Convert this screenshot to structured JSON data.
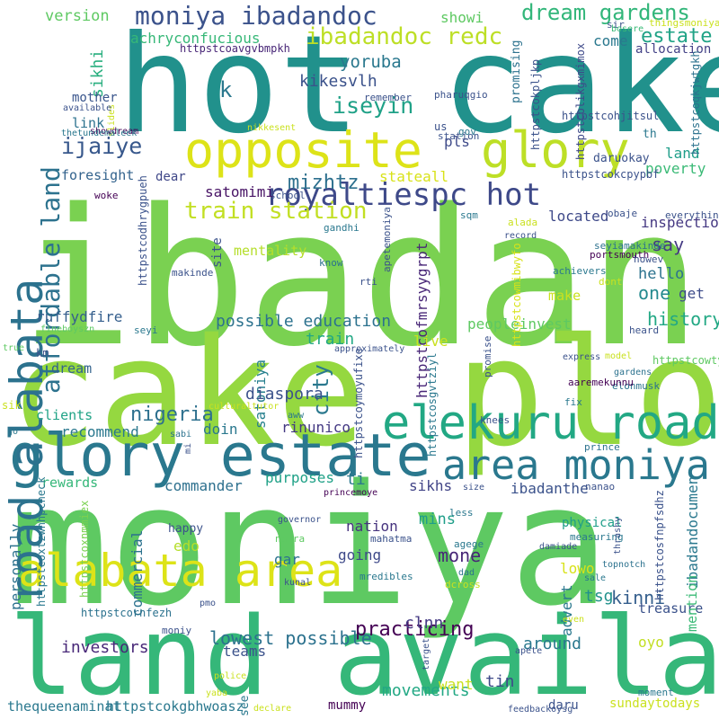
{
  "words": [
    {
      "text": "hot cake",
      "color": "#21918c"
    },
    {
      "text": "ibadan",
      "color": "#7ad151"
    },
    {
      "text": "cake plots",
      "color": "#95d840"
    },
    {
      "text": "moniya",
      "color": "#5ec962"
    },
    {
      "text": "land available",
      "color": "#35b779"
    },
    {
      "text": "glory estate",
      "color": "#2a788e"
    },
    {
      "text": "opposite",
      "color": "#dde318"
    },
    {
      "text": "glory",
      "color": "#bddf26"
    },
    {
      "text": "road alabata",
      "color": "#2c728e"
    },
    {
      "text": "elekuru road",
      "color": "#22a884"
    },
    {
      "text": "area moniya",
      "color": "#2a788e"
    },
    {
      "text": "alabata area",
      "color": "#dde318"
    },
    {
      "text": "royaltiespc hot",
      "color": "#3e4989"
    },
    {
      "text": "affordable land",
      "color": "#2c728e"
    },
    {
      "text": "moniya ibadandoc",
      "color": "#3b528b"
    },
    {
      "text": "dream gardens",
      "color": "#32b67a"
    },
    {
      "text": "ibadandoc redc",
      "color": "#bddf26"
    },
    {
      "text": "train station",
      "color": "#c2df23"
    },
    {
      "text": "estate",
      "color": "#20a386"
    },
    {
      "text": "iseyin",
      "color": "#1fa187"
    },
    {
      "text": "ijaiye",
      "color": "#38588c"
    },
    {
      "text": "mizhtz",
      "color": "#2d708e"
    },
    {
      "text": "yoruba",
      "color": "#2a788e"
    },
    {
      "text": "sikhi",
      "color": "#29af7f"
    },
    {
      "text": "version",
      "color": "#5ec962"
    },
    {
      "text": "showi",
      "color": "#5ec962"
    },
    {
      "text": "achryconfucious",
      "color": "#37b878"
    },
    {
      "text": "come",
      "color": "#2a788e"
    },
    {
      "text": "allocation",
      "color": "#424186"
    },
    {
      "text": "k",
      "color": "#2a788e"
    },
    {
      "text": "kikesvlh",
      "color": "#3b528b"
    },
    {
      "text": "mother",
      "color": "#39558c"
    },
    {
      "text": "link",
      "color": "#2c728e"
    },
    {
      "text": "foresight",
      "color": "#33638d"
    },
    {
      "text": "dear",
      "color": "#3f4788"
    },
    {
      "text": "satomimi",
      "color": "#471365"
    },
    {
      "text": "stateall",
      "color": "#d8e219"
    },
    {
      "text": "pls",
      "color": "#3e4a89"
    },
    {
      "text": "land",
      "color": "#1f9e89"
    },
    {
      "text": "poverty",
      "color": "#3aba76"
    },
    {
      "text": "inspection",
      "color": "#453882"
    },
    {
      "text": "say",
      "color": "#443983"
    },
    {
      "text": "hello",
      "color": "#2c728e"
    },
    {
      "text": "one",
      "color": "#23898e"
    },
    {
      "text": "get",
      "color": "#3e4c8a"
    },
    {
      "text": "history",
      "color": "#22a884"
    },
    {
      "text": "ruffydfire",
      "color": "#355f8d"
    },
    {
      "text": "possible education",
      "color": "#2c728e"
    },
    {
      "text": "peopleinvest",
      "color": "#5ec962"
    },
    {
      "text": "city",
      "color": "#2a788e"
    },
    {
      "text": "satoniya",
      "color": "#27808e"
    },
    {
      "text": "train",
      "color": "#22a884"
    },
    {
      "text": "dream",
      "color": "#33638d"
    },
    {
      "text": "nigeria",
      "color": "#2d708e"
    },
    {
      "text": "clients",
      "color": "#20a386"
    },
    {
      "text": "recommend",
      "color": "#2a788e"
    },
    {
      "text": "doin",
      "color": "#2a788e"
    },
    {
      "text": "rinunico",
      "color": "#443983"
    },
    {
      "text": "purposes",
      "color": "#1fa187"
    },
    {
      "text": "sikhs",
      "color": "#414487"
    },
    {
      "text": "ibadanthe",
      "color": "#3b528b"
    },
    {
      "text": "ibadandocumen",
      "color": "#2a788e"
    },
    {
      "text": "commander",
      "color": "#2d708e"
    },
    {
      "text": "rewards",
      "color": "#35b779"
    },
    {
      "text": "happy",
      "color": "#3b528b"
    },
    {
      "text": "edo",
      "color": "#b5de2b"
    },
    {
      "text": "nation",
      "color": "#46337e"
    },
    {
      "text": "mins",
      "color": "#1f9e89"
    },
    {
      "text": "mone",
      "color": "#482677"
    },
    {
      "text": "going",
      "color": "#3e4989"
    },
    {
      "text": "gar",
      "color": "#2c728e"
    },
    {
      "text": "physical",
      "color": "#1f9e89"
    },
    {
      "text": "lowo",
      "color": "#d8e219"
    },
    {
      "text": "practicing",
      "color": "#440154"
    },
    {
      "text": "advert",
      "color": "#2a788e"
    },
    {
      "text": "tsg",
      "color": "#21918c"
    },
    {
      "text": "kinni",
      "color": "#355f8d"
    },
    {
      "text": "lowest possible",
      "color": "#2c728e"
    },
    {
      "text": "clnn",
      "color": "#443983"
    },
    {
      "text": "investors",
      "color": "#482878"
    },
    {
      "text": "teams",
      "color": "#3b528b"
    },
    {
      "text": "around",
      "color": "#2a788e"
    },
    {
      "text": "oyo",
      "color": "#c2df23"
    },
    {
      "text": "treasure",
      "color": "#3b528b"
    },
    {
      "text": "movements",
      "color": "#22a884"
    },
    {
      "text": "tin",
      "color": "#3e4989"
    },
    {
      "text": "want",
      "color": "#cae11f"
    },
    {
      "text": "daru",
      "color": "#3b528b"
    },
    {
      "text": "sundaytodays",
      "color": "#cae11f"
    },
    {
      "text": "thequeenaminat",
      "color": "#2a788e"
    },
    {
      "text": "httpstcokgbhwoasz",
      "color": "#2a788e"
    },
    {
      "text": "mummy",
      "color": "#440154"
    },
    {
      "text": "commercial",
      "color": "#2c728e"
    },
    {
      "text": "personally",
      "color": "#2c728e"
    },
    {
      "text": "mention",
      "color": "#3aba76"
    },
    {
      "text": "httpstcofmrsyygrpt",
      "color": "#482677"
    },
    {
      "text": "located",
      "color": "#3e4989"
    },
    {
      "text": "make",
      "color": "#cae11f"
    },
    {
      "text": "live",
      "color": "#cae11f"
    },
    {
      "text": "site",
      "color": "#3b528b"
    },
    {
      "text": "mentality",
      "color": "#b5de2b"
    },
    {
      "text": "diaspora",
      "color": "#3b528b"
    },
    {
      "text": "ti",
      "color": "#2a788e"
    },
    {
      "text": "th",
      "color": "#2a788e"
    },
    {
      "text": "daruokay",
      "color": "#3b528b"
    },
    {
      "text": "us",
      "color": "#3b528b"
    },
    {
      "text": "pharuqgio",
      "color": "#3b528b"
    },
    {
      "text": "promising",
      "color": "#2c728e"
    },
    {
      "text": "httpstcokpljkp",
      "color": "#3b528b"
    },
    {
      "text": "httpstcoqkjwtgkh",
      "color": "#2c728e"
    },
    {
      "text": "httpstcohjitsul",
      "color": "#3b528b"
    },
    {
      "text": "httpstcokcpypbf",
      "color": "#3b528b"
    },
    {
      "text": "httpstcodhrygpueh",
      "color": "#3b528b"
    },
    {
      "text": "httpstcolikgxmimox",
      "color": "#3e4989"
    },
    {
      "text": "httpstcowmibwyfo",
      "color": "#d8e219"
    },
    {
      "text": "httpstcosgvtziyl",
      "color": "#2a788e"
    },
    {
      "text": "httpstcoymoyufixe",
      "color": "#3b528b"
    },
    {
      "text": "httpstcowtynsdo",
      "color": "#5ec962"
    },
    {
      "text": "httpstcosfnpfsdhz",
      "color": "#3b528b"
    },
    {
      "text": "httpstcoxtzwhhpcheck",
      "color": "#2a788e"
    },
    {
      "text": "httpstcoxnmmiex",
      "color": "#7ad151"
    },
    {
      "text": "httpstcornfezh",
      "color": "#2c728e"
    },
    {
      "text": "httpstcoavgvbmpkh",
      "color": "#482677"
    },
    {
      "text": "thingsmoniya",
      "color": "#cae11f"
    },
    {
      "text": "sir",
      "color": "#3b528b"
    },
    {
      "text": "bosere",
      "color": "#3aba76"
    },
    {
      "text": "slides",
      "color": "#cae11f"
    },
    {
      "text": "remember",
      "color": "#3b528b"
    },
    {
      "text": "available",
      "color": "#3b528b"
    },
    {
      "text": "showdream",
      "color": "#440154"
    },
    {
      "text": "thetundemaleek",
      "color": "#2a788e"
    },
    {
      "text": "nikkesent",
      "color": "#cae11f"
    },
    {
      "text": "gov",
      "color": "#2a788e"
    },
    {
      "text": "station",
      "color": "#3b528b"
    },
    {
      "text": "school",
      "color": "#3b528b"
    },
    {
      "text": "woke",
      "color": "#440154"
    },
    {
      "text": "apetemoniya",
      "color": "#3b528b"
    },
    {
      "text": "gandhi",
      "color": "#2a788e"
    },
    {
      "text": "sqm",
      "color": "#2a788e"
    },
    {
      "text": "alada",
      "color": "#cae11f"
    },
    {
      "text": "record",
      "color": "#3b528b"
    },
    {
      "text": "obaje",
      "color": "#3b528b"
    },
    {
      "text": "everything",
      "color": "#3b528b"
    },
    {
      "text": "seyiamakinde",
      "color": "#2c728e"
    },
    {
      "text": "portsmouth",
      "color": "#440154"
    },
    {
      "text": "howev",
      "color": "#3b528b"
    },
    {
      "text": "achievers",
      "color": "#2a788e"
    },
    {
      "text": "dont",
      "color": "#cae11f"
    },
    {
      "text": "makinde",
      "color": "#3b528b"
    },
    {
      "text": "rti",
      "color": "#3b528b"
    },
    {
      "text": "know",
      "color": "#2c728e"
    },
    {
      "text": "seyi",
      "color": "#2a788e"
    },
    {
      "text": "fineboyszn",
      "color": "#5ec962"
    },
    {
      "text": "true",
      "color": "#5ec962"
    },
    {
      "text": "km",
      "color": "#3b528b"
    },
    {
      "text": "approximately",
      "color": "#3b528b"
    },
    {
      "text": "promise",
      "color": "#3b528b"
    },
    {
      "text": "heard",
      "color": "#3b528b"
    },
    {
      "text": "express",
      "color": "#3b528b"
    },
    {
      "text": "model",
      "color": "#cae11f"
    },
    {
      "text": "gardens",
      "color": "#2c728e"
    },
    {
      "text": "elonmusk",
      "color": "#2c728e"
    },
    {
      "text": "aaremekunnu",
      "color": "#440154"
    },
    {
      "text": "fix",
      "color": "#2a788e"
    },
    {
      "text": "knees",
      "color": "#3b528b"
    },
    {
      "text": "culturaltutor",
      "color": "#cae11f"
    },
    {
      "text": "aww",
      "color": "#2a788e"
    },
    {
      "text": "sik",
      "color": "#cae11f"
    },
    {
      "text": "go",
      "color": "#2a788e"
    },
    {
      "text": "sabi",
      "color": "#2c728e"
    },
    {
      "text": "mi",
      "color": "#3b528b"
    },
    {
      "text": "prince",
      "color": "#2c728e"
    },
    {
      "text": "size",
      "color": "#3b528b"
    },
    {
      "text": "nanao",
      "color": "#3b528b"
    },
    {
      "text": "princemoye",
      "color": "#440154"
    },
    {
      "text": "less",
      "color": "#2a788e"
    },
    {
      "text": "governor",
      "color": "#3b528b"
    },
    {
      "text": "naira",
      "color": "#5ec962"
    },
    {
      "text": "mahatma",
      "color": "#3b528b"
    },
    {
      "text": "measuring",
      "color": "#2a788e"
    },
    {
      "text": "thrashy",
      "color": "#3b528b"
    },
    {
      "text": "damiade",
      "color": "#3b528b"
    },
    {
      "text": "agege",
      "color": "#2a788e"
    },
    {
      "text": "mredibles",
      "color": "#2a788e"
    },
    {
      "text": "kunal",
      "color": "#3b528b"
    },
    {
      "text": "dad",
      "color": "#2c728e"
    },
    {
      "text": "dcross",
      "color": "#cae11f"
    },
    {
      "text": "topnotch",
      "color": "#2c728e"
    },
    {
      "text": "sale",
      "color": "#2a788e"
    },
    {
      "text": "pmo",
      "color": "#3b528b"
    },
    {
      "text": "moniy",
      "color": "#3b528b"
    },
    {
      "text": "even",
      "color": "#cae11f"
    },
    {
      "text": "apete",
      "color": "#3b528b"
    },
    {
      "text": "target",
      "color": "#3b528b"
    },
    {
      "text": "police",
      "color": "#cae11f"
    },
    {
      "text": "yaba",
      "color": "#cae11f"
    },
    {
      "text": "see",
      "color": "#2a788e"
    },
    {
      "text": "declare",
      "color": "#cae11f"
    },
    {
      "text": "feedbackoysg",
      "color": "#3b528b"
    },
    {
      "text": "moment",
      "color": "#2a788e"
    },
    {
      "text": "fell",
      "color": "#3b528b"
    }
  ]
}
